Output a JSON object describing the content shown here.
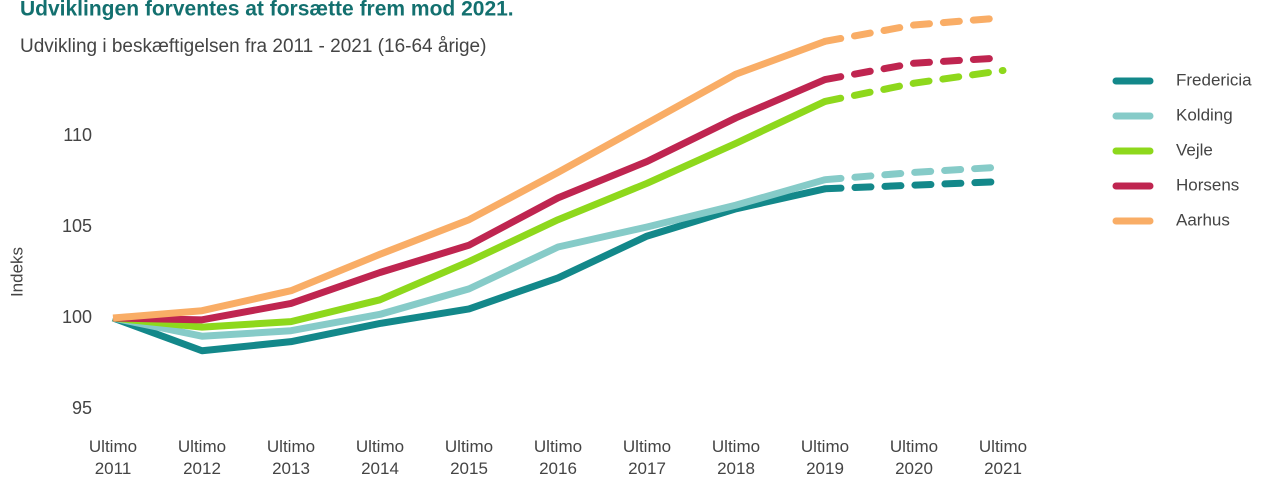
{
  "chart_data": {
    "type": "line",
    "title": "Udviklingen forventes at forsætte frem mod 2021.",
    "subtitle": "Udvikling i beskæftigelsen fra 2011 - 2021 (16-64 årige)",
    "y_label": "Indeks",
    "categories": [
      "Ultimo 2011",
      "Ultimo 2012",
      "Ultimo 2013",
      "Ultimo 2014",
      "Ultimo 2015",
      "Ultimo 2016",
      "Ultimo 2017",
      "Ultimo 2018",
      "Ultimo 2019",
      "Ultimo 2020",
      "Ultimo 2021"
    ],
    "dashed_from": "Ultimo 2019",
    "series": [
      {
        "name": "Fredericia",
        "color": "#13888a",
        "values": [
          100,
          98.2,
          98.7,
          99.7,
          100.5,
          102.2,
          104.5,
          106.0,
          107.1,
          107.3,
          107.5
        ]
      },
      {
        "name": "Kolding",
        "color": "#86cbc8",
        "values": [
          100,
          99.0,
          99.3,
          100.2,
          101.6,
          103.9,
          105.0,
          106.2,
          107.6,
          108.0,
          108.3
        ]
      },
      {
        "name": "Vejle",
        "color": "#8ed81c",
        "values": [
          100,
          99.5,
          99.8,
          101.0,
          103.1,
          105.4,
          107.4,
          109.6,
          111.9,
          112.9,
          113.6
        ]
      },
      {
        "name": "Horsens",
        "color": "#bf2550",
        "values": [
          100,
          99.9,
          100.8,
          102.5,
          104.0,
          106.6,
          108.6,
          111.0,
          113.1,
          114.0,
          114.3
        ]
      },
      {
        "name": "Aarhus",
        "color": "#f9ad66",
        "values": [
          100,
          100.4,
          101.5,
          103.5,
          105.4,
          108.0,
          110.7,
          113.4,
          115.2,
          116.1,
          116.5
        ]
      }
    ],
    "ylim": [
      94,
      117
    ],
    "yticks": [
      95,
      100,
      105,
      110
    ],
    "grid": false,
    "legend": "right"
  }
}
